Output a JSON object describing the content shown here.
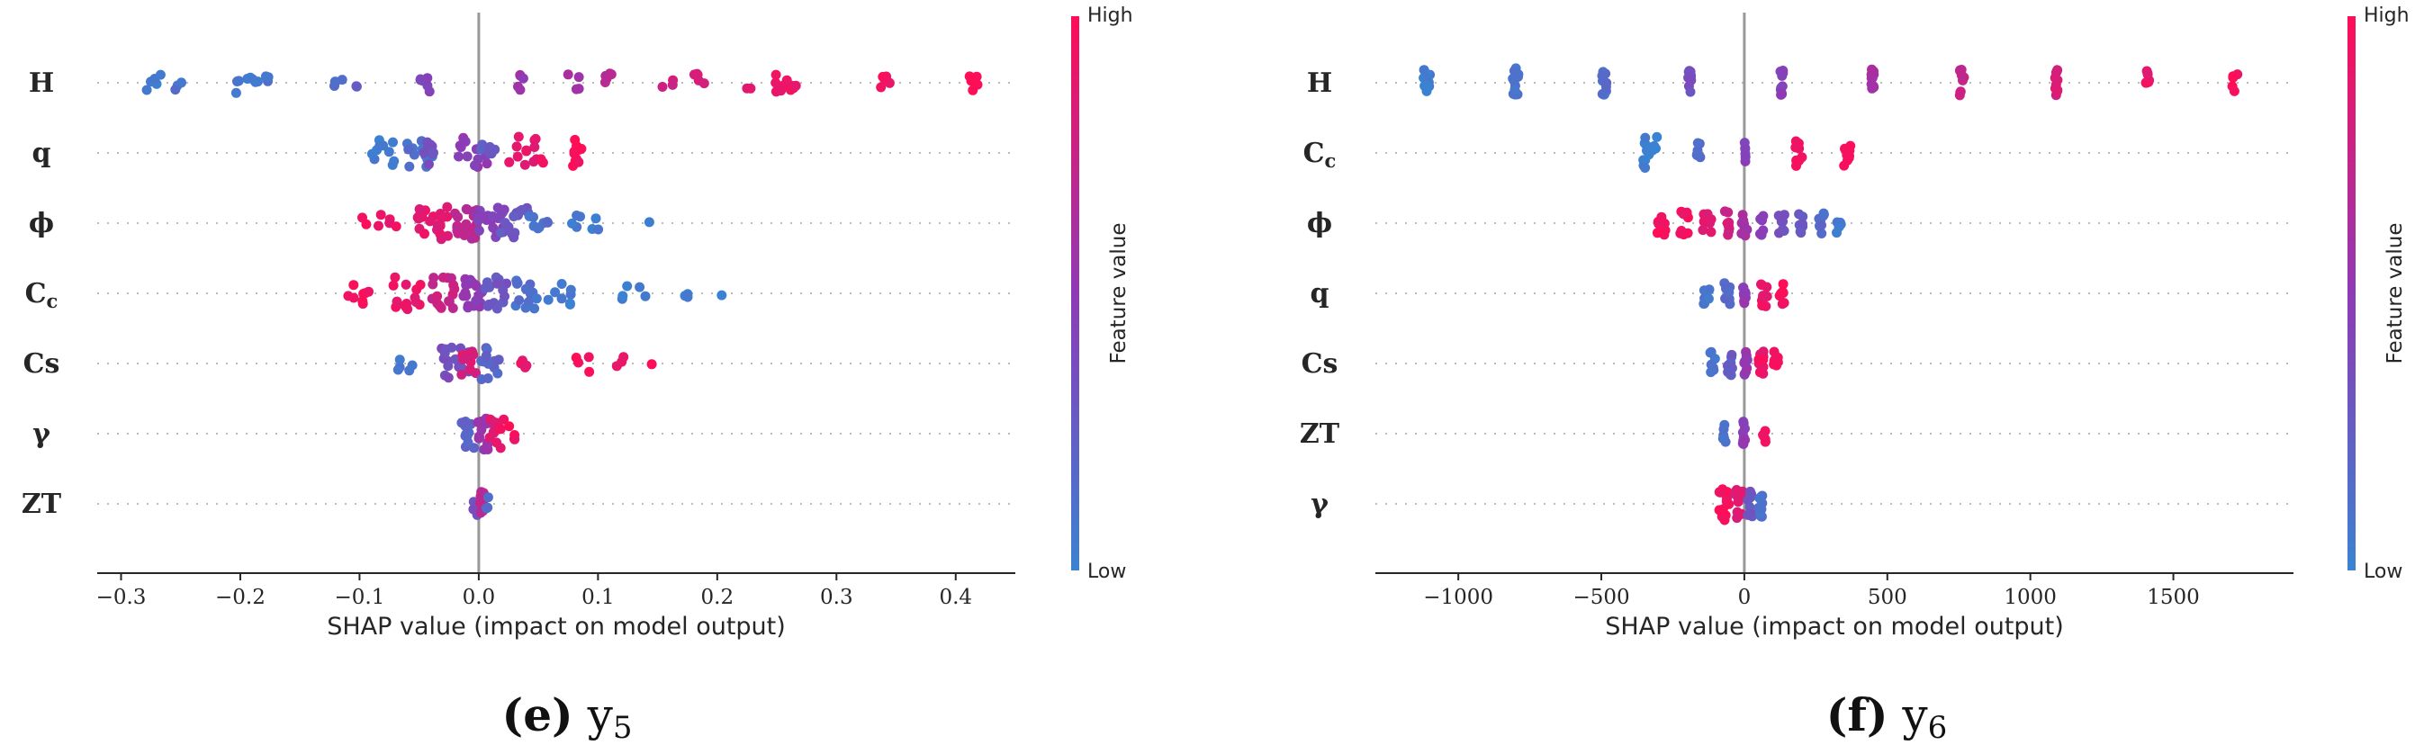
{
  "colors": {
    "low": "#3a82d2",
    "mid": "#8e3ab6",
    "high": "#ff0d57"
  },
  "chart_data": [
    {
      "type": "scatter",
      "subtype": "shap-beeswarm",
      "caption": {
        "letter": "(e)",
        "text": "y",
        "subscript": "5"
      },
      "xlabel": "SHAP value (impact on model output)",
      "xlim": [
        -0.32,
        0.45
      ],
      "xticks": [
        "−0.3",
        "−0.2",
        "−0.1",
        "0.0",
        "0.1",
        "0.2",
        "0.3",
        "0.4"
      ],
      "xtick_values": [
        -0.3,
        -0.2,
        -0.1,
        0.0,
        0.1,
        0.2,
        0.3,
        0.4
      ],
      "colorbar": {
        "label": "Feature value",
        "high": "High",
        "low": "Low"
      },
      "features": [
        {
          "name": "H",
          "clusters": [
            [
              -0.27,
              0.01,
              5,
              0.05
            ],
            [
              -0.25,
              0.005,
              3,
              0.1
            ],
            [
              -0.195,
              0.01,
              8,
              0.08
            ],
            [
              -0.178,
              0.005,
              3,
              0.12
            ],
            [
              -0.12,
              0.006,
              4,
              0.15
            ],
            [
              -0.1,
              0.005,
              2,
              0.22
            ],
            [
              -0.045,
              0.004,
              6,
              0.4
            ],
            [
              0.035,
              0.003,
              5,
              0.55
            ],
            [
              0.08,
              0.006,
              4,
              0.62
            ],
            [
              0.11,
              0.005,
              6,
              0.7
            ],
            [
              0.16,
              0.006,
              3,
              0.78
            ],
            [
              0.185,
              0.005,
              5,
              0.82
            ],
            [
              0.228,
              0.004,
              2,
              0.85
            ],
            [
              0.25,
              0.006,
              5,
              0.88
            ],
            [
              0.262,
              0.004,
              5,
              0.92
            ],
            [
              0.34,
              0.005,
              5,
              0.96
            ],
            [
              0.415,
              0.004,
              5,
              1.0
            ]
          ]
        },
        {
          "name": "q",
          "clusters": [
            [
              -0.08,
              0.01,
              10,
              0.05
            ],
            [
              -0.05,
              0.012,
              15,
              0.12
            ],
            [
              -0.04,
              0.006,
              8,
              0.35
            ],
            [
              -0.005,
              0.012,
              12,
              0.5
            ],
            [
              0.01,
              0.01,
              8,
              0.25
            ],
            [
              0.04,
              0.015,
              14,
              0.9
            ],
            [
              0.085,
              0.006,
              10,
              0.98
            ]
          ]
        },
        {
          "name": "ϕ",
          "clusters": [
            [
              -0.09,
              0.008,
              4,
              0.97
            ],
            [
              -0.07,
              0.006,
              3,
              0.93
            ],
            [
              -0.04,
              0.015,
              22,
              0.88
            ],
            [
              -0.01,
              0.01,
              24,
              0.7
            ],
            [
              0.01,
              0.012,
              20,
              0.45
            ],
            [
              0.03,
              0.012,
              16,
              0.3
            ],
            [
              0.05,
              0.008,
              8,
              0.12
            ],
            [
              0.08,
              0.006,
              4,
              0.05
            ],
            [
              0.1,
              0.006,
              3,
              0.04
            ],
            [
              0.145,
              0.002,
              1,
              0.02
            ]
          ]
        },
        {
          "name": "C_c",
          "clusters": [
            [
              -0.1,
              0.01,
              8,
              0.98
            ],
            [
              -0.06,
              0.012,
              14,
              0.9
            ],
            [
              -0.03,
              0.01,
              16,
              0.75
            ],
            [
              -0.005,
              0.008,
              18,
              0.5
            ],
            [
              0.015,
              0.01,
              16,
              0.3
            ],
            [
              0.04,
              0.01,
              14,
              0.12
            ],
            [
              0.07,
              0.012,
              8,
              0.05
            ],
            [
              0.13,
              0.01,
              5,
              0.04
            ],
            [
              0.17,
              0.006,
              3,
              0.02
            ],
            [
              0.205,
              0.002,
              1,
              0.01
            ]
          ]
        },
        {
          "name": "Cs",
          "clusters": [
            [
              -0.06,
              0.008,
              5,
              0.1
            ],
            [
              -0.02,
              0.012,
              18,
              0.35
            ],
            [
              -0.01,
              0.008,
              10,
              0.85
            ],
            [
              0.01,
              0.008,
              14,
              0.2
            ],
            [
              0.04,
              0.006,
              4,
              0.9
            ],
            [
              0.085,
              0.012,
              4,
              0.95
            ],
            [
              0.12,
              0.006,
              3,
              0.92
            ],
            [
              0.145,
              0.002,
              1,
              0.96
            ]
          ]
        },
        {
          "name": "γ",
          "clusters": [
            [
              -0.01,
              0.006,
              14,
              0.2
            ],
            [
              0.005,
              0.006,
              16,
              0.55
            ],
            [
              0.015,
              0.006,
              12,
              0.9
            ],
            [
              0.03,
              0.005,
              4,
              0.95
            ]
          ]
        },
        {
          "name": "ZT",
          "clusters": [
            [
              -0.003,
              0.002,
              8,
              0.35
            ],
            [
              0.003,
              0.002,
              8,
              0.7
            ],
            [
              0.008,
              0.002,
              3,
              0.1
            ]
          ]
        }
      ]
    },
    {
      "type": "scatter",
      "subtype": "shap-beeswarm",
      "caption": {
        "letter": "(f)",
        "text": "y",
        "subscript": "6"
      },
      "xlabel": "SHAP value (impact on model output)",
      "xlim": [
        -1290,
        1920
      ],
      "xticks": [
        "−1000",
        "−500",
        "0",
        "500",
        "1000",
        "1500"
      ],
      "xtick_values": [
        -1000,
        -500,
        0,
        500,
        1000,
        1500
      ],
      "colorbar": {
        "label": "Feature value",
        "high": "High",
        "low": "Low"
      },
      "features": [
        {
          "name": "H",
          "clusters": [
            [
              -1110,
              12,
              12,
              0.02
            ],
            [
              -800,
              10,
              12,
              0.08
            ],
            [
              -490,
              8,
              10,
              0.15
            ],
            [
              -190,
              6,
              10,
              0.35
            ],
            [
              130,
              6,
              10,
              0.45
            ],
            [
              450,
              6,
              10,
              0.6
            ],
            [
              760,
              8,
              10,
              0.75
            ],
            [
              1090,
              8,
              10,
              0.82
            ],
            [
              1410,
              6,
              8,
              0.9
            ],
            [
              1720,
              15,
              5,
              0.98
            ]
          ]
        },
        {
          "name": "C_c",
          "clusters": [
            [
              -330,
              25,
              14,
              0.02
            ],
            [
              -160,
              6,
              6,
              0.15
            ],
            [
              0,
              6,
              6,
              0.45
            ],
            [
              190,
              15,
              10,
              0.92
            ],
            [
              360,
              12,
              10,
              0.98
            ]
          ]
        },
        {
          "name": "ϕ",
          "clusters": [
            [
              -290,
              15,
              8,
              0.98
            ],
            [
              -210,
              15,
              8,
              0.95
            ],
            [
              -130,
              15,
              8,
              0.88
            ],
            [
              -60,
              12,
              8,
              0.8
            ],
            [
              0,
              10,
              10,
              0.6
            ],
            [
              60,
              10,
              8,
              0.45
            ],
            [
              130,
              10,
              8,
              0.35
            ],
            [
              200,
              10,
              8,
              0.25
            ],
            [
              270,
              10,
              8,
              0.15
            ],
            [
              330,
              8,
              6,
              0.05
            ]
          ]
        },
        {
          "name": "q",
          "clusters": [
            [
              -130,
              12,
              8,
              0.08
            ],
            [
              -60,
              10,
              8,
              0.2
            ],
            [
              0,
              5,
              10,
              0.5
            ],
            [
              70,
              12,
              10,
              0.92
            ],
            [
              130,
              10,
              8,
              0.96
            ]
          ]
        },
        {
          "name": "Cs",
          "clusters": [
            [
              -110,
              10,
              8,
              0.1
            ],
            [
              -50,
              10,
              10,
              0.25
            ],
            [
              5,
              6,
              10,
              0.5
            ],
            [
              60,
              10,
              10,
              0.92
            ],
            [
              110,
              8,
              8,
              0.95
            ]
          ]
        },
        {
          "name": "ZT",
          "clusters": [
            [
              -70,
              5,
              6,
              0.1
            ],
            [
              0,
              5,
              10,
              0.5
            ],
            [
              70,
              5,
              6,
              0.95
            ]
          ]
        },
        {
          "name": "γ",
          "clusters": [
            [
              -70,
              20,
              14,
              0.97
            ],
            [
              -20,
              15,
              12,
              0.85
            ],
            [
              20,
              12,
              12,
              0.3
            ],
            [
              60,
              10,
              10,
              0.1
            ]
          ]
        }
      ]
    }
  ]
}
